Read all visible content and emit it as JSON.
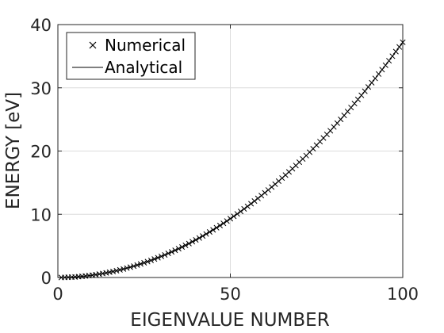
{
  "chart_data": {
    "type": "line",
    "title": "",
    "xlabel": "EIGENVALUE NUMBER",
    "ylabel": "ENERGY [eV]",
    "xlim": [
      0,
      100
    ],
    "ylim": [
      0,
      40
    ],
    "xticks": [
      0,
      50,
      100
    ],
    "yticks": [
      0,
      10,
      20,
      30,
      40
    ],
    "xtick_labels": [
      "0",
      "50",
      "100"
    ],
    "ytick_labels": [
      "0",
      "10",
      "20",
      "30",
      "40"
    ],
    "grid": true,
    "legend_position": "top-left",
    "model": {
      "form": "a*n^2",
      "a": 0.00372
    },
    "series": [
      {
        "name": "Numerical",
        "style": "markers",
        "marker": "x",
        "color": "#000000",
        "x": [
          1,
          2,
          3,
          4,
          5,
          6,
          7,
          8,
          9,
          10,
          11,
          12,
          13,
          14,
          15,
          16,
          17,
          18,
          19,
          20,
          21,
          22,
          23,
          24,
          25,
          26,
          27,
          28,
          29,
          30,
          31,
          32,
          33,
          34,
          35,
          36,
          37,
          38,
          39,
          40,
          41,
          42,
          43,
          44,
          45,
          46,
          47,
          48,
          49,
          50,
          51,
          52,
          53,
          54,
          55,
          56,
          57,
          58,
          59,
          60,
          61,
          62,
          63,
          64,
          65,
          66,
          67,
          68,
          69,
          70,
          71,
          72,
          73,
          74,
          75,
          76,
          77,
          78,
          79,
          80,
          81,
          82,
          83,
          84,
          85,
          86,
          87,
          88,
          89,
          90,
          91,
          92,
          93,
          94,
          95,
          96,
          97,
          98,
          99,
          100
        ],
        "y": [
          0.004,
          0.015,
          0.033,
          0.06,
          0.09,
          0.13,
          0.18,
          0.24,
          0.3,
          0.37,
          0.45,
          0.54,
          0.63,
          0.73,
          0.84,
          0.95,
          1.08,
          1.21,
          1.34,
          1.49,
          1.64,
          1.8,
          1.97,
          2.14,
          2.33,
          2.51,
          2.71,
          2.92,
          3.13,
          3.35,
          3.57,
          3.81,
          4.05,
          4.3,
          4.56,
          4.82,
          5.09,
          5.37,
          5.66,
          5.95,
          6.25,
          6.56,
          6.88,
          7.2,
          7.53,
          7.87,
          8.22,
          8.57,
          8.93,
          9.3,
          9.68,
          10.06,
          10.45,
          10.85,
          11.25,
          11.67,
          12.09,
          12.51,
          12.95,
          13.39,
          13.84,
          14.3,
          14.76,
          15.24,
          15.72,
          16.2,
          16.7,
          17.2,
          17.71,
          18.23,
          18.75,
          19.28,
          19.82,
          20.37,
          20.93,
          21.49,
          22.06,
          22.63,
          23.21,
          23.81,
          24.41,
          25.01,
          25.63,
          26.25,
          26.88,
          27.51,
          28.16,
          28.81,
          29.46,
          30.13,
          30.81,
          31.49,
          32.18,
          32.87,
          33.57,
          34.28,
          35.0,
          35.73,
          36.46,
          37.2
        ]
      },
      {
        "name": "Analytical",
        "style": "line",
        "color": "#000000",
        "x": [
          0,
          10,
          20,
          30,
          40,
          50,
          60,
          70,
          80,
          90,
          100
        ],
        "y": [
          0,
          0.372,
          1.488,
          3.348,
          5.952,
          9.3,
          13.39,
          18.23,
          23.81,
          30.13,
          37.2
        ]
      }
    ]
  }
}
